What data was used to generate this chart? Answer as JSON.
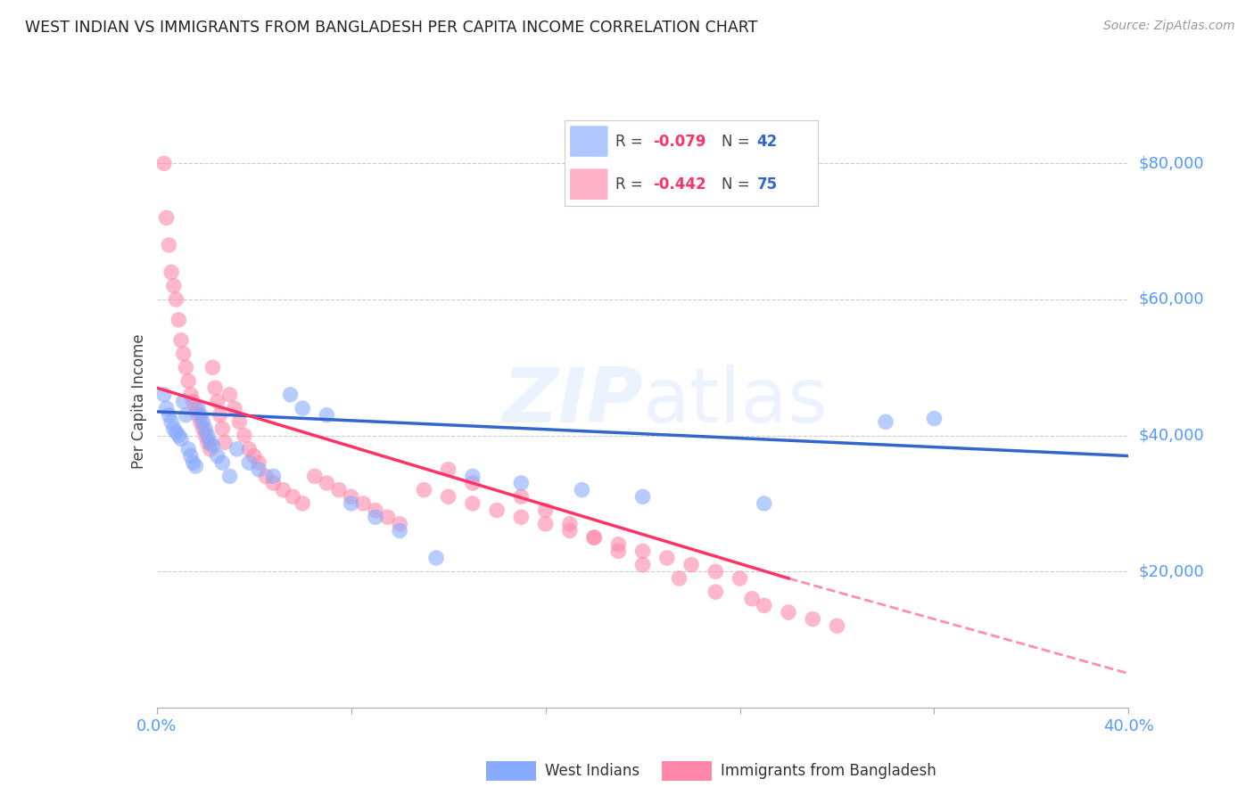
{
  "title": "WEST INDIAN VS IMMIGRANTS FROM BANGLADESH PER CAPITA INCOME CORRELATION CHART",
  "source": "Source: ZipAtlas.com",
  "ylabel": "Per Capita Income",
  "y_ticks": [
    20000,
    40000,
    60000,
    80000
  ],
  "y_tick_labels": [
    "$20,000",
    "$40,000",
    "$60,000",
    "$80,000"
  ],
  "y_lim": [
    0,
    90000
  ],
  "x_lim": [
    0,
    0.4
  ],
  "watermark_zip": "ZIP",
  "watermark_atlas": "atlas",
  "blue_color": "#88aaff",
  "pink_color": "#ff88aa",
  "blue_line_color": "#3366cc",
  "pink_line_color": "#ff3366",
  "tick_color": "#5599ff",
  "grid_color": "#cccccc",
  "west_indian_x": [
    0.003,
    0.004,
    0.005,
    0.006,
    0.007,
    0.008,
    0.009,
    0.01,
    0.011,
    0.012,
    0.013,
    0.014,
    0.015,
    0.016,
    0.017,
    0.018,
    0.019,
    0.02,
    0.021,
    0.022,
    0.023,
    0.025,
    0.027,
    0.03,
    0.033,
    0.038,
    0.042,
    0.048,
    0.055,
    0.06,
    0.07,
    0.08,
    0.09,
    0.1,
    0.115,
    0.13,
    0.15,
    0.175,
    0.2,
    0.25,
    0.3,
    0.32
  ],
  "west_indian_y": [
    46000,
    44000,
    43000,
    42000,
    41000,
    40500,
    40000,
    39500,
    45000,
    43000,
    38000,
    37000,
    36000,
    35500,
    44000,
    43000,
    42000,
    41000,
    40000,
    39000,
    38500,
    37000,
    36000,
    34000,
    38000,
    36000,
    35000,
    34000,
    46000,
    44000,
    43000,
    30000,
    28000,
    26000,
    22000,
    34000,
    33000,
    32000,
    31000,
    30000,
    42000,
    42500
  ],
  "bangladesh_x": [
    0.003,
    0.004,
    0.005,
    0.006,
    0.007,
    0.008,
    0.009,
    0.01,
    0.011,
    0.012,
    0.013,
    0.014,
    0.015,
    0.016,
    0.017,
    0.018,
    0.019,
    0.02,
    0.021,
    0.022,
    0.023,
    0.024,
    0.025,
    0.026,
    0.027,
    0.028,
    0.03,
    0.032,
    0.034,
    0.036,
    0.038,
    0.04,
    0.042,
    0.045,
    0.048,
    0.052,
    0.056,
    0.06,
    0.065,
    0.07,
    0.075,
    0.08,
    0.085,
    0.09,
    0.095,
    0.1,
    0.11,
    0.12,
    0.13,
    0.14,
    0.15,
    0.16,
    0.17,
    0.18,
    0.19,
    0.2,
    0.21,
    0.22,
    0.23,
    0.24,
    0.12,
    0.13,
    0.15,
    0.16,
    0.17,
    0.18,
    0.19,
    0.2,
    0.215,
    0.23,
    0.245,
    0.25,
    0.26,
    0.27,
    0.28
  ],
  "bangladesh_y": [
    80000,
    72000,
    68000,
    64000,
    62000,
    60000,
    57000,
    54000,
    52000,
    50000,
    48000,
    46000,
    45000,
    44000,
    43000,
    42000,
    41000,
    40000,
    39000,
    38000,
    50000,
    47000,
    45000,
    43000,
    41000,
    39000,
    46000,
    44000,
    42000,
    40000,
    38000,
    37000,
    36000,
    34000,
    33000,
    32000,
    31000,
    30000,
    34000,
    33000,
    32000,
    31000,
    30000,
    29000,
    28000,
    27000,
    32000,
    31000,
    30000,
    29000,
    28000,
    27000,
    26000,
    25000,
    24000,
    23000,
    22000,
    21000,
    20000,
    19000,
    35000,
    33000,
    31000,
    29000,
    27000,
    25000,
    23000,
    21000,
    19000,
    17000,
    16000,
    15000,
    14000,
    13000,
    12000
  ],
  "R_blue": -0.079,
  "N_blue": 42,
  "R_pink": -0.442,
  "N_pink": 75,
  "legend_label_west": "West Indians",
  "legend_label_bang": "Immigrants from Bangladesh"
}
